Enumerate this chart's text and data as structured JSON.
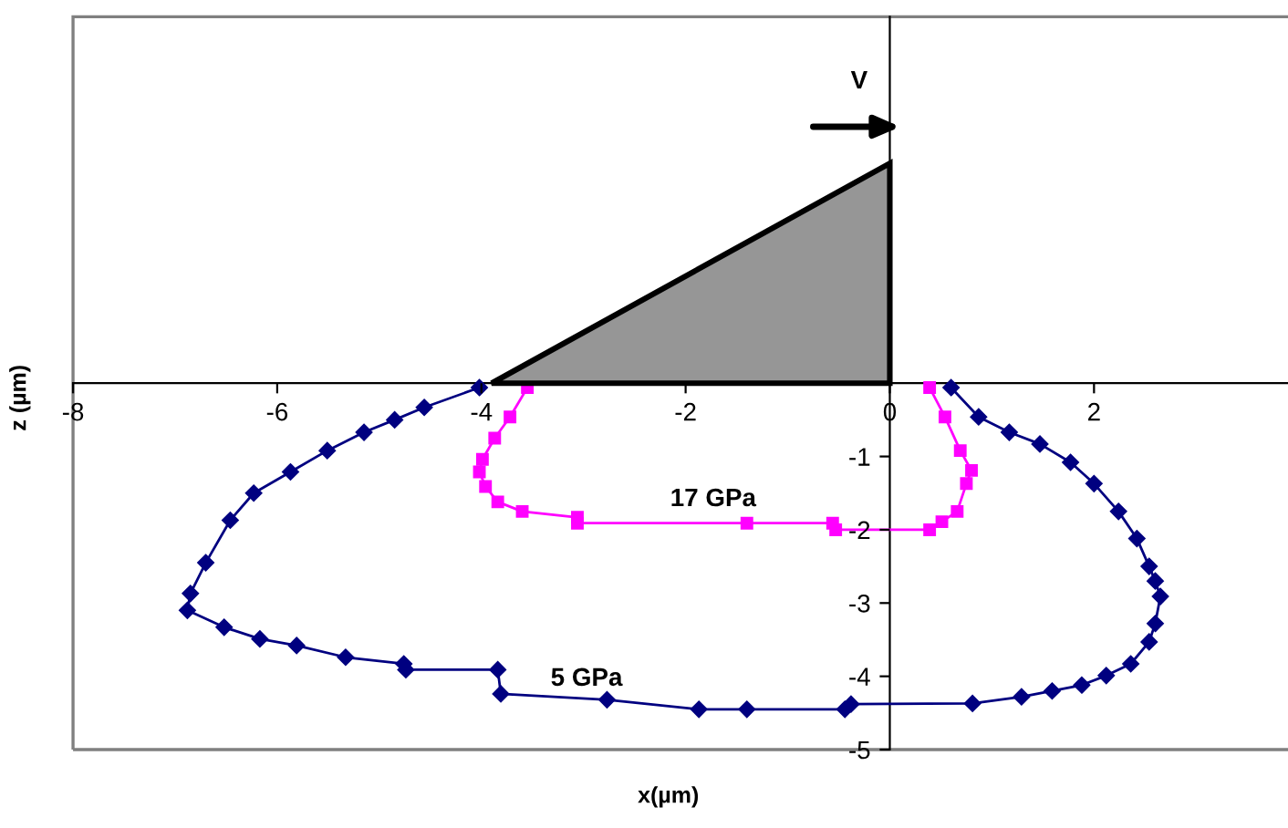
{
  "chart_data": {
    "type": "line",
    "xlabel": "x(µm)",
    "ylabel": "z (µm)",
    "xlim": [
      -8,
      3.9
    ],
    "ylim": [
      -5,
      5
    ],
    "xticks": [
      -8,
      -6,
      -4,
      -2,
      0,
      2
    ],
    "yticks": [
      -1,
      -2,
      -3,
      -4,
      -5
    ],
    "grid": false,
    "legend": false,
    "line_style": "solid",
    "annotations": [
      "V"
    ],
    "series": [
      {
        "name": "5 GPa",
        "color": "#000080",
        "marker": "diamond",
        "x": [
          -4.02,
          -4.56,
          -4.85,
          -5.15,
          -5.51,
          -5.87,
          -6.23,
          -6.46,
          -6.7,
          -6.85,
          -6.88,
          -6.52,
          -6.17,
          -5.81,
          -5.33,
          -4.76,
          -4.74,
          -3.84,
          -3.81,
          -2.77,
          -1.87,
          -1.4,
          -0.44,
          -0.38,
          0.81,
          1.29,
          1.59,
          1.88,
          2.12,
          2.36,
          2.54,
          2.6,
          2.65,
          2.6,
          2.54,
          2.42,
          2.24,
          2.0,
          1.77,
          1.47,
          1.17,
          0.87,
          0.6
        ],
        "values": [
          -0.06,
          -0.33,
          -0.5,
          -0.67,
          -0.92,
          -1.21,
          -1.5,
          -1.87,
          -2.45,
          -2.87,
          -3.1,
          -3.33,
          -3.49,
          -3.58,
          -3.74,
          -3.83,
          -3.91,
          -3.91,
          -4.24,
          -4.32,
          -4.45,
          -4.45,
          -4.45,
          -4.38,
          -4.37,
          -4.28,
          -4.2,
          -4.12,
          -3.99,
          -3.83,
          -3.53,
          -3.28,
          -2.91,
          -2.7,
          -2.5,
          -2.12,
          -1.75,
          -1.37,
          -1.08,
          -0.83,
          -0.67,
          -0.46,
          -0.06
        ]
      },
      {
        "name": "17 GPa",
        "color": "#ff00ff",
        "marker": "square",
        "x": [
          -3.55,
          -3.72,
          -3.87,
          -3.99,
          -4.02,
          -3.96,
          -3.84,
          -3.6,
          -3.06,
          -3.06,
          -1.4,
          -0.56,
          -0.53,
          0.39,
          0.51,
          0.66,
          0.75,
          0.8,
          0.69,
          0.54,
          0.39
        ],
        "values": [
          -0.06,
          -0.46,
          -0.75,
          -1.04,
          -1.21,
          -1.41,
          -1.62,
          -1.75,
          -1.83,
          -1.91,
          -1.91,
          -1.91,
          -2.0,
          -2.0,
          -1.89,
          -1.75,
          -1.37,
          -1.19,
          -0.92,
          -0.46,
          -0.06
        ]
      }
    ]
  }
}
